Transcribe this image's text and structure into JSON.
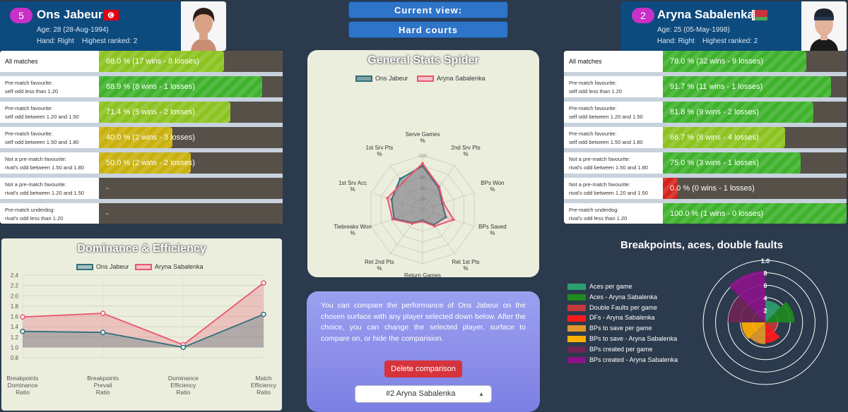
{
  "current_view": {
    "label": "Current view:",
    "surface": "Hard courts"
  },
  "player1": {
    "rank": "5",
    "name": "Ons Jabeur",
    "age": "Age: 28 (28-Aug-1994)",
    "hand": "Hand: Right",
    "highest": "Highest ranked: 2",
    "flag": "tunisia-flag-icon"
  },
  "player2": {
    "rank": "2",
    "name": "Aryna Sabalenka",
    "age": "Age: 25 (05-May-1998)",
    "hand": "Hand: Right",
    "highest": "Highest ranked: 2",
    "flag": "belarus-flag-icon"
  },
  "stats_rows": [
    {
      "label1": "All matches",
      "label2": ""
    },
    {
      "label1": "Pre-match favourite:",
      "label2": "self odd less than 1.20"
    },
    {
      "label1": "Pre-match favourite:",
      "label2": "self odd between 1.20 and 1.50"
    },
    {
      "label1": "Pre-match favourite:",
      "label2": "self odd between 1.50 and 1.80"
    },
    {
      "label1": "Not a pre-match favourite:",
      "label2": "rival's odd between 1.50 and 1.80"
    },
    {
      "label1": "Not a pre-match favourite:",
      "label2": "rival's odd between 1.20 and 1.50"
    },
    {
      "label1": "Pre-match underdog:",
      "label2": "rival's odd less than 1.20"
    }
  ],
  "p1_stats": [
    {
      "text": "68.0 % (17 wins - 8 losses)",
      "pct": 68,
      "color": "lime"
    },
    {
      "text": "88.9 % (8 wins - 1 losses)",
      "pct": 88.9,
      "color": "green"
    },
    {
      "text": "71.4 % (5 wins - 2 losses)",
      "pct": 71.4,
      "color": "lime"
    },
    {
      "text": "40.0 % (2 wins - 3 losses)",
      "pct": 40,
      "color": "yellow"
    },
    {
      "text": "50.0 % (2 wins - 2 losses)",
      "pct": 50,
      "color": "yellow"
    },
    {
      "text": "-",
      "pct": 0,
      "color": "none"
    },
    {
      "text": "-",
      "pct": 0,
      "color": "none"
    }
  ],
  "p2_stats": [
    {
      "text": "78.0 % (32 wins - 9 losses)",
      "pct": 78,
      "color": "green"
    },
    {
      "text": "91.7 % (11 wins - 1 losses)",
      "pct": 91.7,
      "color": "green"
    },
    {
      "text": "81.8 % (9 wins - 2 losses)",
      "pct": 81.8,
      "color": "green"
    },
    {
      "text": "66.7 % (8 wins - 4 losses)",
      "pct": 66.7,
      "color": "lime"
    },
    {
      "text": "75.0 % (3 wins - 1 losses)",
      "pct": 75,
      "color": "green"
    },
    {
      "text": "0.0 % (0 wins - 1 losses)",
      "pct": 0,
      "color": "red"
    },
    {
      "text": "100.0 % (1 wins - 0 losses)",
      "pct": 100,
      "color": "green"
    }
  ],
  "chart_data": [
    {
      "type": "radar",
      "title": "General Stats Spider",
      "categories": [
        "Serve Games %",
        "2nd Srv Pts %",
        "BPs Won %",
        "BPs Saved %",
        "Ret 1st Pts %",
        "Return Games %",
        "Ret 2nd Pts %",
        "Tiebreaks Won %",
        "1st Srv Acc %",
        "1st Srv Pts %"
      ],
      "ticks": [
        20,
        40,
        60,
        80,
        100
      ],
      "ylim": [
        0,
        100
      ],
      "series": [
        {
          "name": "Ons Jabeur",
          "values": [
            80,
            50,
            38,
            45,
            35,
            20,
            30,
            55,
            60,
            70
          ],
          "color": "#2e6f7a"
        },
        {
          "name": "Aryna Sabalenka",
          "values": [
            85,
            52,
            40,
            60,
            38,
            22,
            32,
            58,
            68,
            62
          ],
          "color": "#e8566f"
        }
      ]
    },
    {
      "type": "line",
      "title": "Dominance & Efficiency",
      "categories": [
        "Breakpoints Dominance Ratio",
        "Breakpoints Prevail Ratio",
        "Dominance Efficiency Ratio",
        "Match Efficiency Ratio"
      ],
      "ylim": [
        0.8,
        2.4
      ],
      "yticks": [
        "2.4",
        "2.2",
        "2.0",
        "1.8",
        "1.6",
        "1.4",
        "1.2",
        "1.0",
        "0.8"
      ],
      "series": [
        {
          "name": "Ons Jabeur",
          "values": [
            1.31,
            1.29,
            1.0,
            1.64
          ],
          "color": "#2e6f7a"
        },
        {
          "name": "Aryna Sabalenka",
          "values": [
            1.59,
            1.66,
            1.05,
            2.25
          ],
          "color": "#e8566f"
        }
      ]
    },
    {
      "type": "polar-area",
      "title": "Breakpoints, aces, double faults",
      "ticks": [
        "1.0",
        "8",
        "6",
        "4",
        "2"
      ],
      "series": [
        {
          "name": "Aces per game",
          "value": 3.5,
          "color": "#2e9e6e"
        },
        {
          "name": "Aces - Aryna Sabalenka",
          "value": 4.7,
          "color": "#1f8a1f"
        },
        {
          "name": "Double Faults per game",
          "value": 2.0,
          "color": "#c23a3a"
        },
        {
          "name": "DFs - Aryna Sabalenka",
          "value": 3.3,
          "color": "#ff1a1a"
        },
        {
          "name": "BPs to save per game",
          "value": 3.5,
          "color": "#e0982a"
        },
        {
          "name": "BPs to save - Aryna Sabalenka",
          "value": 3.8,
          "color": "#ffb000"
        },
        {
          "name": "BPs created per game",
          "value": 6.0,
          "color": "#6d2555"
        },
        {
          "name": "BPs created - Aryna Sabalenka",
          "value": 8.3,
          "color": "#8a148a"
        }
      ]
    }
  ],
  "info": {
    "text": "You can compare the performance of Ons Jabeur on the chosen surface with any player selected down below. After the choice, you can change the selected player, surface to compare on, or hide the comparision.",
    "delete_label": "Delete comparison",
    "select_value": "#2 Aryna Sabalenka"
  }
}
